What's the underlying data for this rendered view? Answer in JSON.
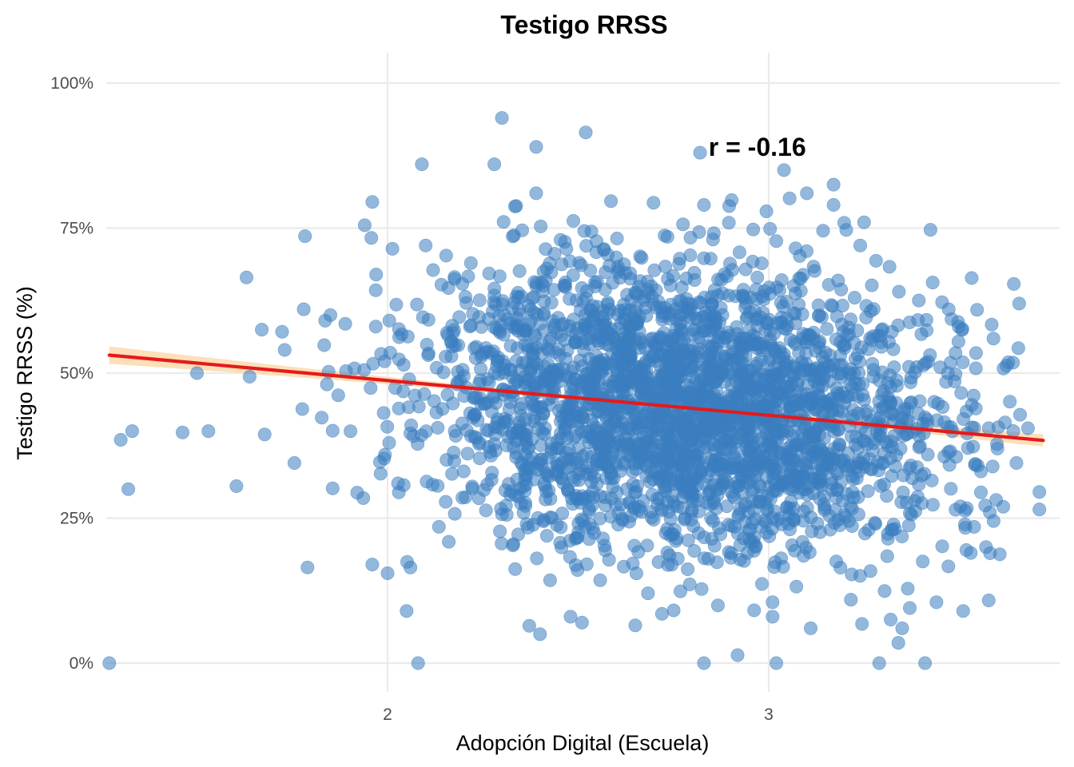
{
  "chart_data": {
    "type": "scatter",
    "title": "Testigo RRSS",
    "xlabel": "Adopción Digital (Escuela)",
    "ylabel": "Testigo RRSS (%)",
    "xlim": [
      1.35,
      3.75
    ],
    "ylim": [
      -0.05,
      1.05
    ],
    "x_ticks": [
      2,
      3
    ],
    "x_tick_labels": [
      "2",
      "3"
    ],
    "y_ticks": [
      0,
      0.25,
      0.5,
      0.75,
      1.0
    ],
    "y_tick_labels": [
      "0%",
      "25%",
      "50%",
      "75%",
      "100%"
    ],
    "grid": true,
    "legend": "none",
    "annotation": {
      "text": "r = -0.16",
      "x": 2.97,
      "y": 0.89
    },
    "point_color": "#3A7DBF",
    "fit_color": "#E41A1C",
    "band_color": "#FDD9AC",
    "fit": {
      "type": "linear",
      "x0": 1.27,
      "y0": 0.531,
      "x1": 3.72,
      "y1": 0.384
    },
    "band_halfwidth": {
      "edge": 0.015,
      "center": 0.004,
      "center_x": 2.65
    },
    "n_points": 3000,
    "points": [
      [
        1.27,
        0.0
      ],
      [
        2.08,
        0.0
      ],
      [
        2.83,
        0.0
      ],
      [
        3.02,
        0.0
      ],
      [
        3.29,
        0.0
      ],
      [
        3.41,
        0.0
      ],
      [
        1.3,
        0.385
      ],
      [
        1.33,
        0.4
      ],
      [
        1.32,
        0.3
      ],
      [
        1.5,
        0.5
      ],
      [
        1.53,
        0.4
      ],
      [
        1.63,
        0.665
      ],
      [
        1.67,
        0.575
      ],
      [
        1.73,
        0.54
      ],
      [
        1.78,
        0.61
      ],
      [
        1.79,
        0.165
      ],
      [
        1.85,
        0.6
      ],
      [
        1.94,
        0.755
      ],
      [
        1.96,
        0.795
      ],
      [
        1.97,
        0.67
      ],
      [
        1.96,
        0.17
      ],
      [
        2.0,
        0.155
      ],
      [
        2.06,
        0.165
      ],
      [
        2.05,
        0.09
      ],
      [
        2.09,
        0.86
      ],
      [
        2.1,
        0.72
      ],
      [
        2.3,
        0.94
      ],
      [
        2.52,
        0.915
      ],
      [
        2.39,
        0.89
      ],
      [
        2.39,
        0.81
      ],
      [
        2.28,
        0.86
      ],
      [
        2.4,
        0.05
      ],
      [
        2.48,
        0.08
      ],
      [
        2.51,
        0.07
      ],
      [
        2.65,
        0.065
      ],
      [
        2.72,
        0.085
      ],
      [
        2.82,
        0.88
      ],
      [
        2.83,
        0.79
      ],
      [
        3.04,
        0.85
      ],
      [
        3.1,
        0.81
      ],
      [
        3.17,
        0.825
      ],
      [
        3.17,
        0.79
      ],
      [
        3.25,
        0.76
      ],
      [
        3.24,
        0.72
      ],
      [
        3.01,
        0.105
      ],
      [
        3.01,
        0.08
      ],
      [
        3.11,
        0.06
      ],
      [
        3.32,
        0.075
      ],
      [
        3.35,
        0.06
      ],
      [
        3.34,
        0.035
      ],
      [
        3.37,
        0.095
      ],
      [
        3.44,
        0.105
      ],
      [
        3.51,
        0.09
      ],
      [
        3.53,
        0.19
      ],
      [
        3.57,
        0.2
      ],
      [
        3.62,
        0.415
      ],
      [
        3.68,
        0.405
      ],
      [
        3.71,
        0.295
      ],
      [
        3.71,
        0.265
      ],
      [
        3.65,
        0.345
      ],
      [
        3.6,
        0.37
      ],
      [
        3.58,
        0.26
      ],
      [
        3.59,
        0.245
      ],
      [
        3.47,
        0.5
      ],
      [
        3.45,
        0.51
      ]
    ]
  }
}
